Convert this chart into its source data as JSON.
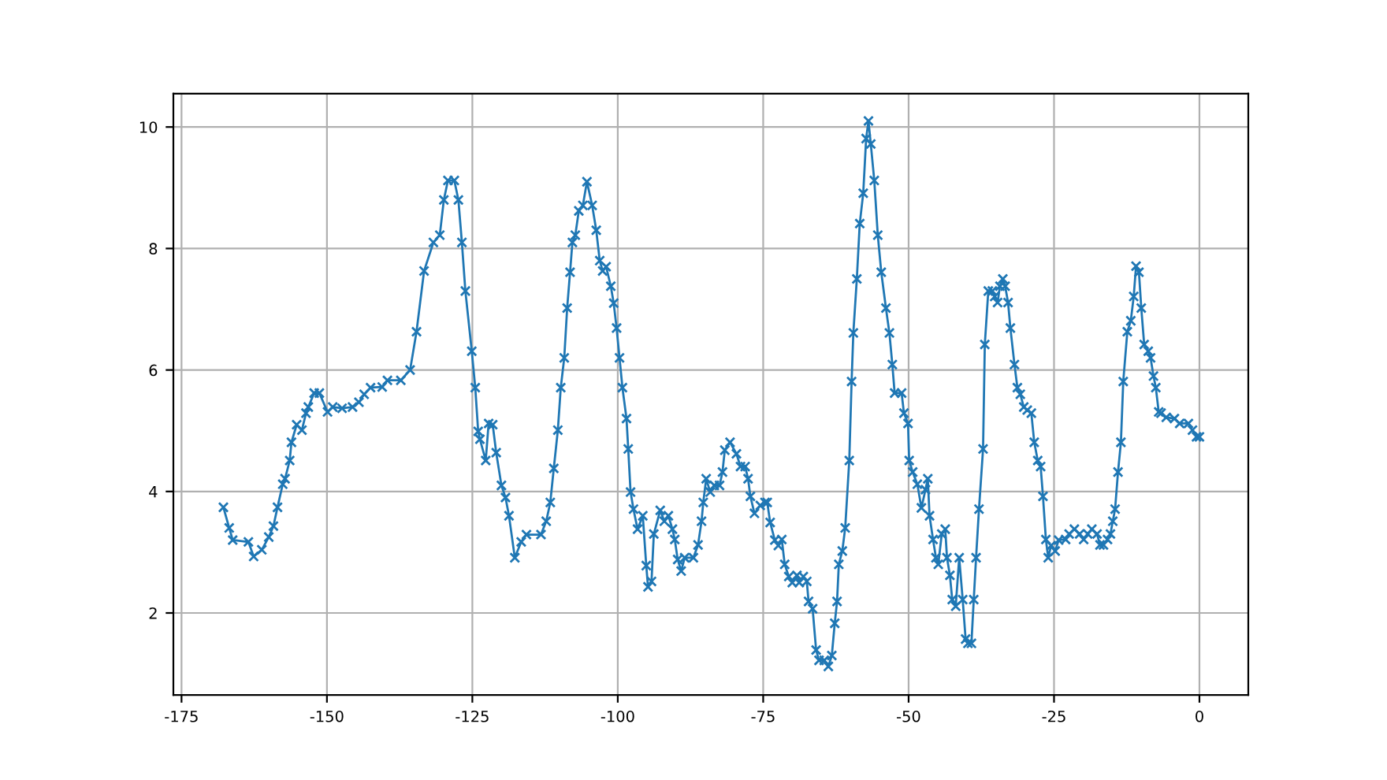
{
  "chart_data": {
    "type": "line",
    "marker": "cross",
    "grid": true,
    "xlim": [
      -176.4,
      8.4
    ],
    "ylim": [
      0.65,
      10.55
    ],
    "xticks": [
      -175,
      -150,
      -125,
      -100,
      -75,
      -50,
      -25,
      0
    ],
    "yticks": [
      2,
      4,
      6,
      8,
      10
    ],
    "series": [
      {
        "color": "#1f77b4",
        "x": [
          -167.8,
          -166.8,
          -166.2,
          -163.5,
          -162.6,
          -161.2,
          -160.0,
          -159.2,
          -158.5,
          -157.6,
          -157.2,
          -156.4,
          -156.1,
          -155.2,
          -154.3,
          -153.6,
          -153.2,
          -152.2,
          -151.3,
          -149.9,
          -149.0,
          -147.4,
          -145.6,
          -144.5,
          -143.6,
          -142.5,
          -140.5,
          -139.6,
          -137.3,
          -135.7,
          -134.6,
          -133.3,
          -131.7,
          -130.6,
          -129.9,
          -129.2,
          -128.1,
          -127.4,
          -126.8,
          -126.2,
          -125.1,
          -124.5,
          -124.0,
          -123.7,
          -122.7,
          -122.2,
          -121.5,
          -120.9,
          -120.0,
          -119.3,
          -118.7,
          -117.7,
          -116.6,
          -115.7,
          -113.2,
          -112.3,
          -111.6,
          -111.0,
          -110.3,
          -109.8,
          -109.2,
          -108.7,
          -108.2,
          -107.8,
          -107.3,
          -106.7,
          -106.0,
          -105.3,
          -104.4,
          -103.7,
          -103.1,
          -102.6,
          -102.0,
          -101.2,
          -100.7,
          -100.2,
          -99.7,
          -99.2,
          -98.5,
          -98.2,
          -97.8,
          -97.3,
          -96.6,
          -95.7,
          -95.1,
          -94.8,
          -94.2,
          -93.8,
          -92.7,
          -92.0,
          -91.3,
          -90.6,
          -90.2,
          -89.7,
          -89.1,
          -88.5,
          -87.0,
          -86.2,
          -85.6,
          -85.3,
          -84.8,
          -84.1,
          -83.4,
          -82.5,
          -82.0,
          -81.6,
          -80.7,
          -79.6,
          -78.9,
          -78.1,
          -77.6,
          -77.2,
          -76.5,
          -75.5,
          -74.7,
          -74.3,
          -73.8,
          -73.0,
          -72.4,
          -71.8,
          -71.3,
          -70.6,
          -70.0,
          -69.2,
          -68.8,
          -68.1,
          -67.5,
          -67.2,
          -66.5,
          -65.9,
          -65.4,
          -64.5,
          -63.8,
          -63.2,
          -62.7,
          -62.3,
          -62.0,
          -61.4,
          -60.9,
          -60.2,
          -59.8,
          -59.5,
          -58.9,
          -58.4,
          -57.8,
          -57.3,
          -56.9,
          -56.5,
          -55.9,
          -55.3,
          -54.7,
          -53.9,
          -53.3,
          -52.8,
          -52.4,
          -51.2,
          -50.8,
          -50.1,
          -49.9,
          -49.3,
          -48.5,
          -47.8,
          -47.1,
          -46.7,
          -46.4,
          -45.8,
          -45.3,
          -44.9,
          -44.3,
          -43.7,
          -43.4,
          -42.9,
          -42.5,
          -41.9,
          -41.3,
          -40.7,
          -40.2,
          -39.8,
          -39.2,
          -38.8,
          -38.4,
          -37.9,
          -37.2,
          -36.9,
          -36.3,
          -35.6,
          -35.2,
          -34.7,
          -34.3,
          -33.8,
          -33.4,
          -32.9,
          -32.5,
          -31.8,
          -31.3,
          -30.8,
          -30.2,
          -29.6,
          -28.9,
          -28.4,
          -27.8,
          -27.3,
          -26.9,
          -26.4,
          -26.0,
          -25.5,
          -24.8,
          -24.2,
          -23.0,
          -22.4,
          -21.5,
          -20.6,
          -19.9,
          -19.2,
          -18.5,
          -17.6,
          -17.1,
          -16.5,
          -15.8,
          -15.3,
          -14.9,
          -14.5,
          -14.0,
          -13.5,
          -13.1,
          -12.4,
          -11.8,
          -11.3,
          -10.9,
          -10.4,
          -10.0,
          -9.5,
          -8.8,
          -8.4,
          -7.9,
          -7.5,
          -7.0,
          -6.6,
          -5.7,
          -4.3,
          -3.4,
          -1.9,
          -1.2,
          -0.5,
          0
        ],
        "values": [
          3.74,
          3.4,
          3.2,
          3.17,
          2.93,
          3.04,
          3.25,
          3.43,
          3.74,
          4.12,
          4.21,
          4.51,
          4.81,
          5.1,
          5.01,
          5.29,
          5.39,
          5.62,
          5.62,
          5.31,
          5.39,
          5.37,
          5.39,
          5.47,
          5.6,
          5.71,
          5.72,
          5.83,
          5.83,
          6.0,
          6.63,
          7.63,
          8.1,
          8.22,
          8.8,
          9.12,
          9.12,
          8.8,
          8.1,
          7.3,
          6.31,
          5.71,
          4.99,
          4.86,
          4.51,
          5.12,
          5.1,
          4.64,
          4.1,
          3.9,
          3.6,
          2.91,
          3.17,
          3.29,
          3.29,
          3.51,
          3.82,
          4.38,
          5.01,
          5.71,
          6.2,
          7.02,
          7.61,
          8.1,
          8.22,
          8.62,
          8.71,
          9.1,
          8.71,
          8.3,
          7.8,
          7.63,
          7.7,
          7.38,
          7.1,
          6.69,
          6.2,
          5.71,
          5.2,
          4.7,
          3.99,
          3.71,
          3.38,
          3.6,
          2.78,
          2.43,
          2.52,
          3.3,
          3.69,
          3.51,
          3.6,
          3.38,
          3.21,
          2.88,
          2.69,
          2.91,
          2.91,
          3.12,
          3.51,
          3.82,
          4.21,
          3.99,
          4.1,
          4.1,
          4.32,
          4.68,
          4.81,
          4.62,
          4.41,
          4.41,
          4.21,
          3.92,
          3.64,
          3.77,
          3.82,
          3.82,
          3.49,
          3.2,
          3.11,
          3.21,
          2.8,
          2.6,
          2.5,
          2.62,
          2.5,
          2.6,
          2.52,
          2.19,
          2.07,
          1.39,
          1.22,
          1.22,
          1.12,
          1.3,
          1.83,
          2.19,
          2.8,
          3.02,
          3.4,
          4.51,
          5.81,
          6.61,
          7.5,
          8.41,
          8.91,
          9.81,
          10.1,
          9.72,
          9.12,
          8.22,
          7.61,
          7.02,
          6.61,
          6.09,
          5.62,
          5.62,
          5.29,
          5.12,
          4.51,
          4.32,
          4.12,
          3.73,
          4.03,
          4.21,
          3.6,
          3.21,
          2.91,
          2.8,
          3.3,
          3.38,
          2.91,
          2.62,
          2.22,
          2.11,
          2.91,
          2.22,
          1.57,
          1.5,
          1.5,
          2.22,
          2.91,
          3.71,
          4.7,
          6.42,
          7.3,
          7.3,
          7.21,
          7.11,
          7.38,
          7.5,
          7.38,
          7.11,
          6.69,
          6.09,
          5.71,
          5.6,
          5.39,
          5.34,
          5.29,
          4.81,
          4.51,
          4.41,
          3.92,
          3.21,
          2.91,
          3.11,
          3.02,
          3.2,
          3.21,
          3.3,
          3.38,
          3.3,
          3.21,
          3.3,
          3.38,
          3.3,
          3.12,
          3.12,
          3.21,
          3.3,
          3.51,
          3.71,
          4.32,
          4.81,
          5.81,
          6.63,
          6.81,
          7.21,
          7.71,
          7.61,
          7.02,
          6.42,
          6.31,
          6.2,
          5.9,
          5.71,
          5.31,
          5.29,
          5.22,
          5.2,
          5.12,
          5.12,
          5.01,
          4.9,
          4.9
        ]
      }
    ]
  }
}
